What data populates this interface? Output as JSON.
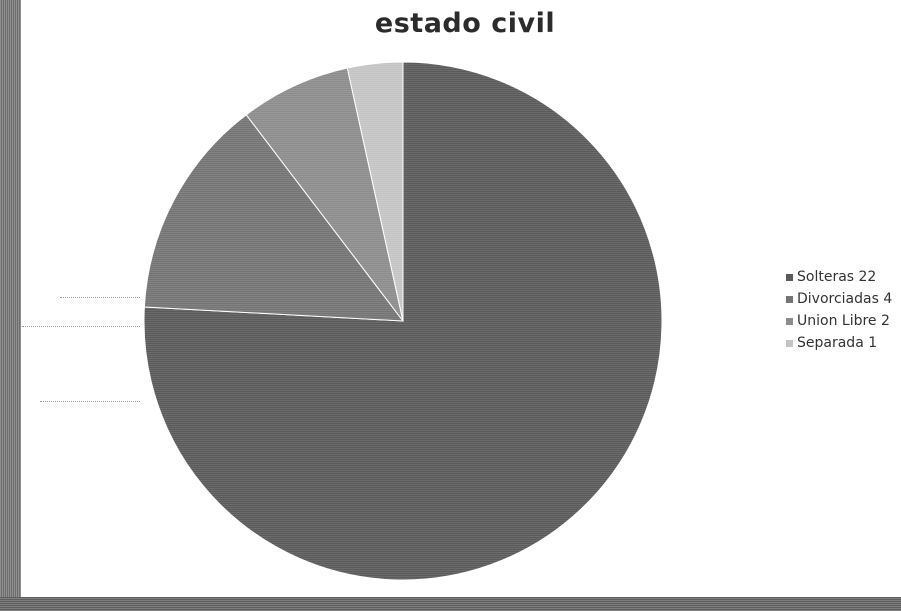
{
  "chart_data": {
    "type": "pie",
    "title": "estado civil",
    "categories": [
      "Solteras 22",
      "Divorciadas 4",
      "Union Libre 2",
      "Separada 1"
    ],
    "values": [
      22,
      4,
      2,
      1
    ],
    "colors": [
      "#5a5a5a",
      "#747474",
      "#8c8c8c",
      "#c4c4c4"
    ],
    "start_angle_deg": 0,
    "direction": "clockwise",
    "legend_position": "right"
  }
}
